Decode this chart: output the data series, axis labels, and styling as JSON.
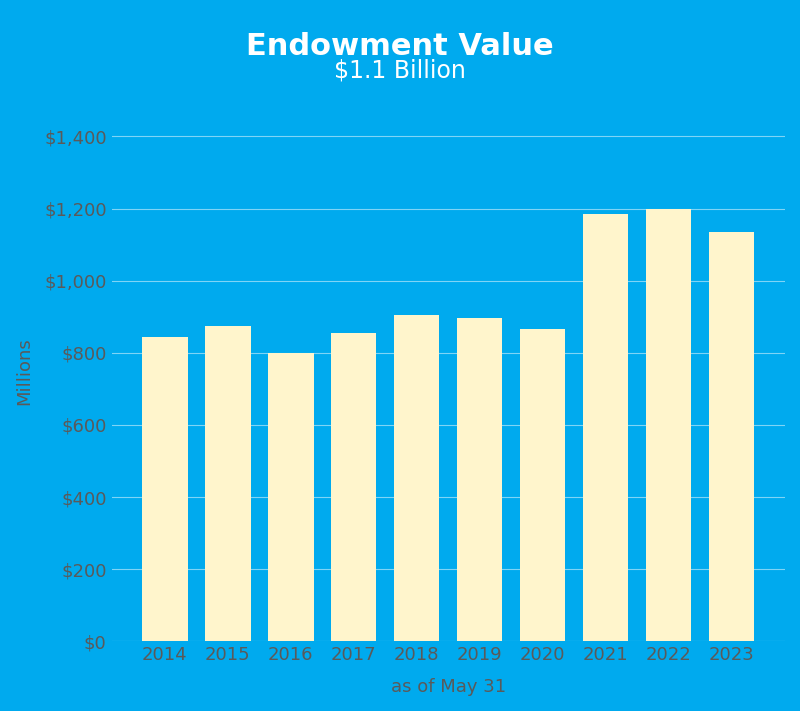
{
  "title": "Endowment Value",
  "subtitle": "$1.1 Billion",
  "xlabel": "as of May 31",
  "ylabel": "Millions",
  "categories": [
    "2014",
    "2015",
    "2016",
    "2017",
    "2018",
    "2019",
    "2020",
    "2021",
    "2022",
    "2023"
  ],
  "values": [
    845,
    875,
    800,
    855,
    905,
    895,
    865,
    1185,
    1200,
    1135
  ],
  "bar_color": "#FFF5CC",
  "background_color": "#00AAEE",
  "title_color": "#FFFFFF",
  "tick_label_color": "#5a5a5a",
  "axis_label_color": "#5a5a5a",
  "grid_color": "#FFFFFF",
  "ylim": [
    0,
    1500
  ],
  "yticks": [
    0,
    200,
    400,
    600,
    800,
    1000,
    1200,
    1400
  ],
  "title_fontsize": 22,
  "subtitle_fontsize": 17,
  "axis_label_fontsize": 13,
  "tick_fontsize": 13,
  "bar_width": 0.72
}
